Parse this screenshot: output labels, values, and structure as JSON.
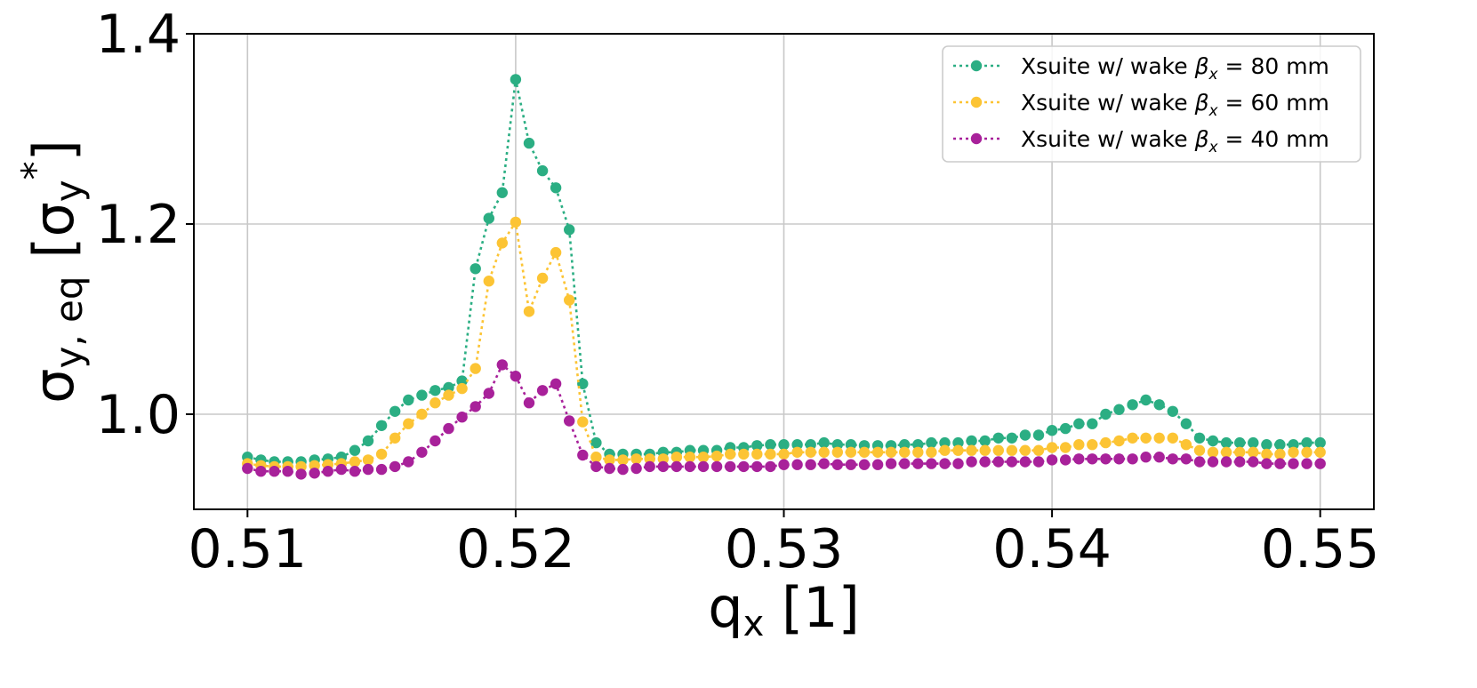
{
  "chart_data": {
    "type": "scatter",
    "xlabel": "qₓ [1]",
    "ylabel": "σy, eq [σy*]",
    "xlim": [
      0.508,
      0.552
    ],
    "ylim": [
      0.9,
      1.4
    ],
    "xticks": [
      "0.51",
      "0.52",
      "0.53",
      "0.54",
      "0.55"
    ],
    "xtick_values": [
      0.51,
      0.52,
      0.53,
      0.54,
      0.55
    ],
    "yticks": [
      "1.0",
      "1.2",
      "1.4"
    ],
    "ytick_values": [
      1.0,
      1.2,
      1.4
    ],
    "grid": true,
    "legend_position": "top-right",
    "line_style": "dotted with circle markers",
    "x": [
      0.51,
      0.5105,
      0.511,
      0.5115,
      0.512,
      0.5125,
      0.513,
      0.5135,
      0.514,
      0.5145,
      0.515,
      0.5155,
      0.516,
      0.5165,
      0.517,
      0.5175,
      0.518,
      0.5185,
      0.519,
      0.5195,
      0.52,
      0.5205,
      0.521,
      0.5215,
      0.522,
      0.5225,
      0.523,
      0.5235,
      0.524,
      0.5245,
      0.525,
      0.5255,
      0.526,
      0.5265,
      0.527,
      0.5275,
      0.528,
      0.5285,
      0.529,
      0.5295,
      0.53,
      0.5305,
      0.531,
      0.5315,
      0.532,
      0.5325,
      0.533,
      0.5335,
      0.534,
      0.5345,
      0.535,
      0.5355,
      0.536,
      0.5365,
      0.537,
      0.5375,
      0.538,
      0.5385,
      0.539,
      0.5395,
      0.54,
      0.5405,
      0.541,
      0.5415,
      0.542,
      0.5425,
      0.543,
      0.5435,
      0.544,
      0.5445,
      0.545,
      0.5455,
      0.546,
      0.5465,
      0.547,
      0.5475,
      0.548,
      0.5485,
      0.549,
      0.5495,
      0.55
    ],
    "series": [
      {
        "label_prefix": "Xsuite w/ wake ",
        "label_beta": "β",
        "label_sub": "x",
        "label_suffix": " = 80 mm",
        "color": "#2bae83",
        "values": [
          0.955,
          0.952,
          0.95,
          0.95,
          0.95,
          0.952,
          0.953,
          0.955,
          0.962,
          0.972,
          0.988,
          1.003,
          1.015,
          1.02,
          1.025,
          1.028,
          1.035,
          1.153,
          1.206,
          1.233,
          1.352,
          1.285,
          1.256,
          1.238,
          1.194,
          1.032,
          0.97,
          0.958,
          0.958,
          0.958,
          0.958,
          0.96,
          0.96,
          0.962,
          0.962,
          0.962,
          0.965,
          0.965,
          0.967,
          0.968,
          0.968,
          0.968,
          0.968,
          0.97,
          0.968,
          0.968,
          0.967,
          0.967,
          0.967,
          0.968,
          0.968,
          0.97,
          0.97,
          0.97,
          0.972,
          0.972,
          0.975,
          0.975,
          0.978,
          0.978,
          0.983,
          0.985,
          0.99,
          0.99,
          1.0,
          1.005,
          1.01,
          1.015,
          1.01,
          1.003,
          0.99,
          0.975,
          0.972,
          0.97,
          0.97,
          0.97,
          0.968,
          0.968,
          0.968,
          0.97,
          0.97
        ]
      },
      {
        "label_prefix": "Xsuite w/ wake ",
        "label_beta": "β",
        "label_sub": "x",
        "label_suffix": " = 60 mm",
        "color": "#fcc434",
        "values": [
          0.948,
          0.946,
          0.945,
          0.945,
          0.945,
          0.946,
          0.947,
          0.948,
          0.95,
          0.952,
          0.958,
          0.975,
          0.99,
          1.0,
          1.012,
          1.02,
          1.027,
          1.048,
          1.14,
          1.18,
          1.202,
          1.108,
          1.143,
          1.17,
          1.12,
          0.992,
          0.955,
          0.952,
          0.952,
          0.953,
          0.953,
          0.953,
          0.955,
          0.955,
          0.955,
          0.956,
          0.958,
          0.958,
          0.958,
          0.958,
          0.958,
          0.96,
          0.96,
          0.96,
          0.96,
          0.96,
          0.96,
          0.96,
          0.96,
          0.96,
          0.96,
          0.96,
          0.962,
          0.962,
          0.962,
          0.962,
          0.962,
          0.962,
          0.962,
          0.962,
          0.965,
          0.965,
          0.968,
          0.968,
          0.97,
          0.972,
          0.975,
          0.975,
          0.975,
          0.975,
          0.968,
          0.962,
          0.96,
          0.96,
          0.96,
          0.96,
          0.958,
          0.958,
          0.96,
          0.96,
          0.96
        ]
      },
      {
        "label_prefix": "Xsuite w/ wake ",
        "label_beta": "β",
        "label_sub": "x",
        "label_suffix": " = 40 mm",
        "color": "#a8219a",
        "values": [
          0.943,
          0.94,
          0.94,
          0.94,
          0.937,
          0.938,
          0.94,
          0.942,
          0.94,
          0.942,
          0.942,
          0.945,
          0.95,
          0.96,
          0.972,
          0.985,
          0.997,
          1.008,
          1.022,
          1.052,
          1.04,
          1.012,
          1.025,
          1.032,
          0.993,
          0.957,
          0.945,
          0.943,
          0.942,
          0.943,
          0.945,
          0.945,
          0.945,
          0.945,
          0.945,
          0.945,
          0.945,
          0.945,
          0.945,
          0.945,
          0.947,
          0.947,
          0.947,
          0.948,
          0.947,
          0.947,
          0.947,
          0.947,
          0.948,
          0.948,
          0.948,
          0.948,
          0.948,
          0.948,
          0.95,
          0.95,
          0.95,
          0.95,
          0.95,
          0.95,
          0.952,
          0.952,
          0.953,
          0.953,
          0.953,
          0.953,
          0.953,
          0.955,
          0.955,
          0.953,
          0.953,
          0.95,
          0.95,
          0.95,
          0.95,
          0.95,
          0.948,
          0.948,
          0.948,
          0.948,
          0.948
        ]
      }
    ]
  }
}
